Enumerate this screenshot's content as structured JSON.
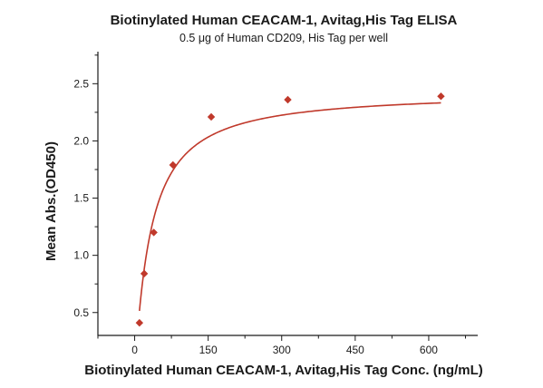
{
  "chart_data": {
    "type": "scatter",
    "title": "Biotinylated Human CEACAM-1, Avitag,His Tag ELISA",
    "subtitle": "0.5 μg of Human CD209, His Tag per well",
    "xlabel": "Biotinylated Human CEACAM-1, Avitag,His Tag Conc. (ng/mL)",
    "ylabel": "Mean Abs.(OD450)",
    "xlim": [
      -75,
      700
    ],
    "ylim": [
      0.3,
      2.78
    ],
    "xticks": [
      0,
      150,
      300,
      450,
      600
    ],
    "yticks": [
      0.5,
      1.0,
      1.5,
      2.0,
      2.5
    ],
    "xtick_labels": [
      "0",
      "150",
      "300",
      "450",
      "600"
    ],
    "ytick_labels": [
      "0.5",
      "1.0",
      "1.5",
      "2.0",
      "2.5"
    ],
    "grid": false,
    "colors": {
      "marker": "#c0392b",
      "curve": "#c0392b",
      "axis": "#1a1a1a"
    },
    "series": [
      {
        "x": [
          9.77,
          19.53,
          39.06,
          78.13,
          156.25,
          312.5,
          625
        ],
        "y": [
          0.41,
          0.84,
          1.2,
          1.79,
          2.21,
          2.36,
          2.39
        ]
      }
    ],
    "fit": {
      "type": "four-parameter-logistic",
      "bottom": 0.0,
      "top": 2.43,
      "ec50": 33,
      "hill": 1.08
    }
  }
}
